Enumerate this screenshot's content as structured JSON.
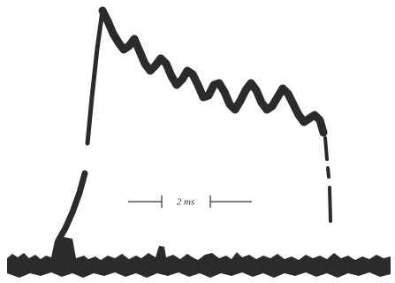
{
  "scale_bar": {
    "label": "2 ms"
  }
}
